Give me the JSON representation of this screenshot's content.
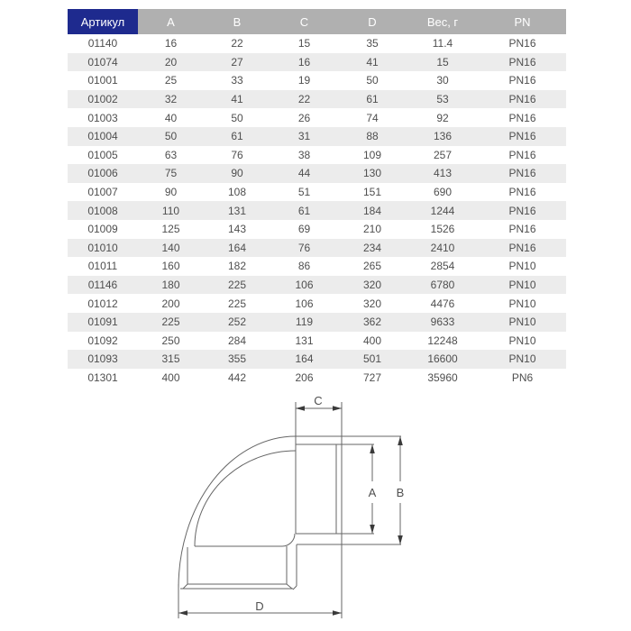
{
  "table": {
    "columns": [
      "Артикул",
      "A",
      "B",
      "C",
      "D",
      "Вес, г",
      "PN"
    ],
    "rows": [
      [
        "01140",
        "16",
        "22",
        "15",
        "35",
        "11.4",
        "PN16"
      ],
      [
        "01074",
        "20",
        "27",
        "16",
        "41",
        "15",
        "PN16"
      ],
      [
        "01001",
        "25",
        "33",
        "19",
        "50",
        "30",
        "PN16"
      ],
      [
        "01002",
        "32",
        "41",
        "22",
        "61",
        "53",
        "PN16"
      ],
      [
        "01003",
        "40",
        "50",
        "26",
        "74",
        "92",
        "PN16"
      ],
      [
        "01004",
        "50",
        "61",
        "31",
        "88",
        "136",
        "PN16"
      ],
      [
        "01005",
        "63",
        "76",
        "38",
        "109",
        "257",
        "PN16"
      ],
      [
        "01006",
        "75",
        "90",
        "44",
        "130",
        "413",
        "PN16"
      ],
      [
        "01007",
        "90",
        "108",
        "51",
        "151",
        "690",
        "PN16"
      ],
      [
        "01008",
        "110",
        "131",
        "61",
        "184",
        "1244",
        "PN16"
      ],
      [
        "01009",
        "125",
        "143",
        "69",
        "210",
        "1526",
        "PN16"
      ],
      [
        "01010",
        "140",
        "164",
        "76",
        "234",
        "2410",
        "PN16"
      ],
      [
        "01011",
        "160",
        "182",
        "86",
        "265",
        "2854",
        "PN10"
      ],
      [
        "01146",
        "180",
        "225",
        "106",
        "320",
        "6780",
        "PN10"
      ],
      [
        "01012",
        "200",
        "225",
        "106",
        "320",
        "4476",
        "PN10"
      ],
      [
        "01091",
        "225",
        "252",
        "119",
        "362",
        "9633",
        "PN10"
      ],
      [
        "01092",
        "250",
        "284",
        "131",
        "400",
        "12248",
        "PN10"
      ],
      [
        "01093",
        "315",
        "355",
        "164",
        "501",
        "16600",
        "PN10"
      ],
      [
        "01301",
        "400",
        "442",
        "206",
        "727",
        "35960",
        "PN6"
      ]
    ]
  },
  "diagram": {
    "type": "90-degree elbow fitting, sectional technical drawing",
    "labels": {
      "a": "A",
      "b": "B",
      "c": "C",
      "d": "D"
    }
  },
  "colors": {
    "header_accent": "#1e2a8e",
    "header_gray": "#b0b0b0",
    "row_alt": "#ececec",
    "table_text": "#4f4f4f",
    "line": "#666666",
    "arrow": "#3a3a3a"
  }
}
